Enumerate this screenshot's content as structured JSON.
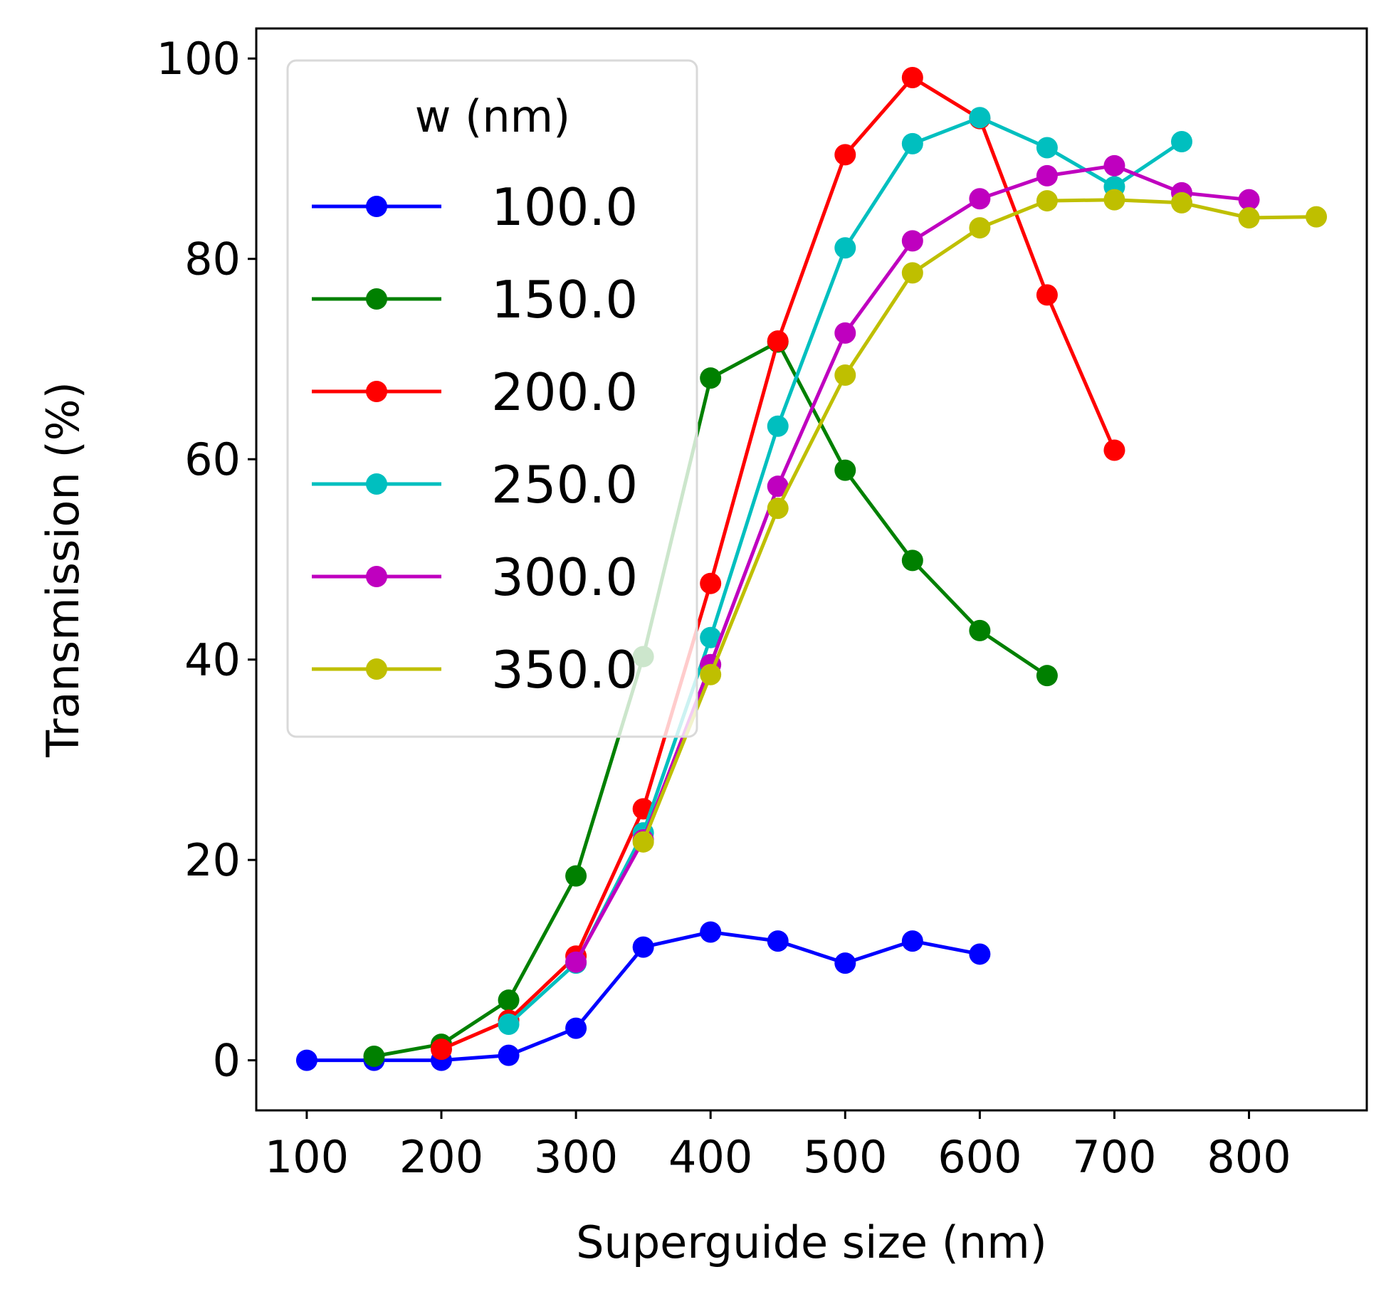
{
  "chart_data": {
    "type": "line",
    "title": "",
    "xlabel": "Superguide size (nm)",
    "ylabel": "Transmission (%)",
    "xlim": [
      62.5,
      887.5
    ],
    "ylim": [
      -5,
      103
    ],
    "xticks": [
      100,
      200,
      300,
      400,
      500,
      600,
      700,
      800
    ],
    "yticks": [
      0,
      20,
      40,
      60,
      80,
      100
    ],
    "grid": false,
    "legend": {
      "title": "w (nm)",
      "placement": "upper-left"
    },
    "series": [
      {
        "name": "100.0",
        "color": "#0000ff",
        "x": [
          100,
          150,
          200,
          250,
          300,
          350,
          400,
          450,
          500,
          550,
          600
        ],
        "y": [
          0,
          0,
          0,
          0.5,
          3.2,
          11.3,
          12.8,
          11.9,
          9.7,
          11.9,
          10.6
        ]
      },
      {
        "name": "150.0",
        "color": "#008000",
        "x": [
          150,
          200,
          250,
          300,
          350,
          400,
          450,
          500,
          550,
          600,
          650
        ],
        "y": [
          0.4,
          1.6,
          6.0,
          18.4,
          40.3,
          68.1,
          71.7,
          58.9,
          49.9,
          42.9,
          38.4
        ]
      },
      {
        "name": "200.0",
        "color": "#ff0000",
        "x": [
          200,
          250,
          300,
          350,
          400,
          450,
          500,
          550,
          600,
          650,
          700
        ],
        "y": [
          1.1,
          4.0,
          10.4,
          25.1,
          47.6,
          71.8,
          90.4,
          98.1,
          94.0,
          76.4,
          60.9
        ]
      },
      {
        "name": "250.0",
        "color": "#00bfbf",
        "x": [
          250,
          300,
          350,
          400,
          450,
          500,
          550,
          600,
          650,
          700,
          750
        ],
        "y": [
          3.6,
          9.7,
          22.7,
          42.2,
          63.3,
          81.1,
          91.5,
          94.1,
          91.1,
          87.2,
          91.7
        ]
      },
      {
        "name": "300.0",
        "color": "#bf00bf",
        "x": [
          300,
          350,
          400,
          450,
          500,
          550,
          600,
          650,
          700,
          750,
          800
        ],
        "y": [
          9.8,
          22.0,
          39.5,
          57.3,
          72.6,
          81.8,
          86.0,
          88.3,
          89.3,
          86.6,
          85.9
        ]
      },
      {
        "name": "350.0",
        "color": "#bfbf00",
        "x": [
          350,
          400,
          450,
          500,
          550,
          600,
          650,
          700,
          750,
          800,
          850
        ],
        "y": [
          21.8,
          38.5,
          55.1,
          68.4,
          78.6,
          83.1,
          85.8,
          85.9,
          85.6,
          84.1,
          84.2
        ]
      }
    ]
  }
}
